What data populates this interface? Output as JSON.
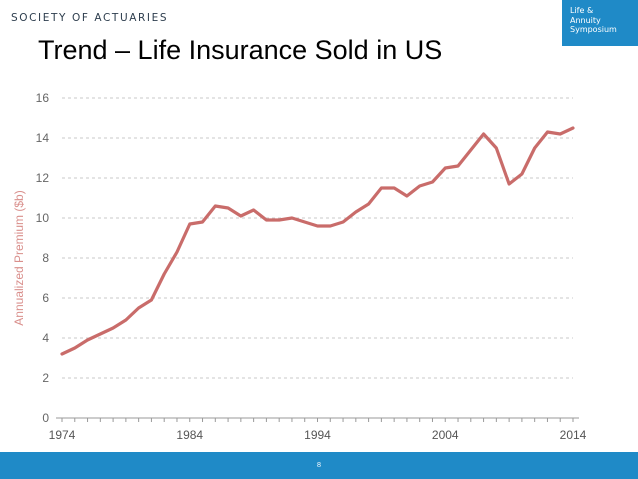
{
  "header": {
    "org_name": "SOCIETY OF ACTUARIES",
    "logo_lines": [
      "Life &",
      "Annuity",
      "Symposium"
    ]
  },
  "title": "Trend – Life Insurance Sold in US",
  "footer": {
    "page_number": "8"
  },
  "colors": {
    "line": "#c96c6a",
    "footer": "#1f8ac7",
    "axis_text": "#666666",
    "ylabel": "#d98f8c"
  },
  "chart_data": {
    "type": "line",
    "title": "",
    "xlabel": "",
    "ylabel": "Annualized Premium ($b)",
    "xlim": [
      1974,
      2014
    ],
    "ylim": [
      0,
      16
    ],
    "x_ticks": [
      "1974",
      "1984",
      "1994",
      "2004",
      "2014"
    ],
    "y_ticks": [
      "0",
      "2",
      "4",
      "6",
      "8",
      "10",
      "12",
      "14",
      "16"
    ],
    "grid": "horizontal dashed",
    "series": [
      {
        "name": "",
        "x": [
          1974,
          1975,
          1976,
          1977,
          1978,
          1979,
          1980,
          1981,
          1982,
          1983,
          1984,
          1985,
          1986,
          1987,
          1988,
          1989,
          1990,
          1991,
          1992,
          1993,
          1994,
          1995,
          1996,
          1997,
          1998,
          1999,
          2000,
          2001,
          2002,
          2003,
          2004,
          2005,
          2006,
          2007,
          2008,
          2009,
          2010,
          2011,
          2012,
          2013,
          2014
        ],
        "values": [
          3.2,
          3.5,
          3.9,
          4.2,
          4.5,
          4.9,
          5.5,
          5.9,
          7.2,
          8.3,
          9.7,
          9.8,
          10.6,
          10.5,
          10.1,
          10.4,
          9.9,
          9.9,
          10.0,
          9.8,
          9.6,
          9.6,
          9.8,
          10.3,
          10.7,
          11.5,
          11.5,
          11.1,
          11.6,
          11.8,
          12.5,
          12.6,
          13.4,
          14.2,
          13.5,
          11.7,
          12.2,
          13.5,
          14.3,
          14.2,
          14.5
        ]
      }
    ]
  }
}
